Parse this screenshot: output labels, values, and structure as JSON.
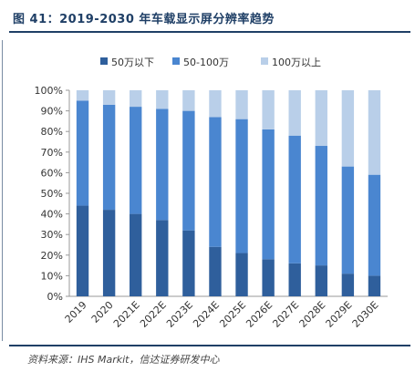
{
  "title": "图 41：2019-2030 年车载显示屏分辨率趋势",
  "source": "资料来源：IHS Markit，信达证券研发中心",
  "chart_data": {
    "type": "bar",
    "stacked": true,
    "categories": [
      "2019",
      "2020",
      "2021E",
      "2022E",
      "2023E",
      "2024E",
      "2025E",
      "2026E",
      "2027E",
      "2028E",
      "2029E",
      "2030E"
    ],
    "series": [
      {
        "name": "50万以下",
        "color": "#2f5f9c",
        "values": [
          44,
          42,
          40,
          37,
          32,
          24,
          21,
          18,
          16,
          15,
          11,
          10
        ]
      },
      {
        "name": "50-100万",
        "color": "#4a86d0",
        "values": [
          51,
          51,
          52,
          54,
          58,
          63,
          65,
          63,
          62,
          58,
          52,
          49
        ]
      },
      {
        "name": "100万以上",
        "color": "#b9cfe9",
        "values": [
          5,
          7,
          8,
          9,
          10,
          13,
          14,
          19,
          22,
          27,
          37,
          41
        ]
      }
    ],
    "ylim": [
      0,
      100
    ],
    "yticks": [
      "0%",
      "10%",
      "20%",
      "30%",
      "40%",
      "50%",
      "60%",
      "70%",
      "80%",
      "90%",
      "100%"
    ],
    "grid": false,
    "legend_position": "top"
  }
}
